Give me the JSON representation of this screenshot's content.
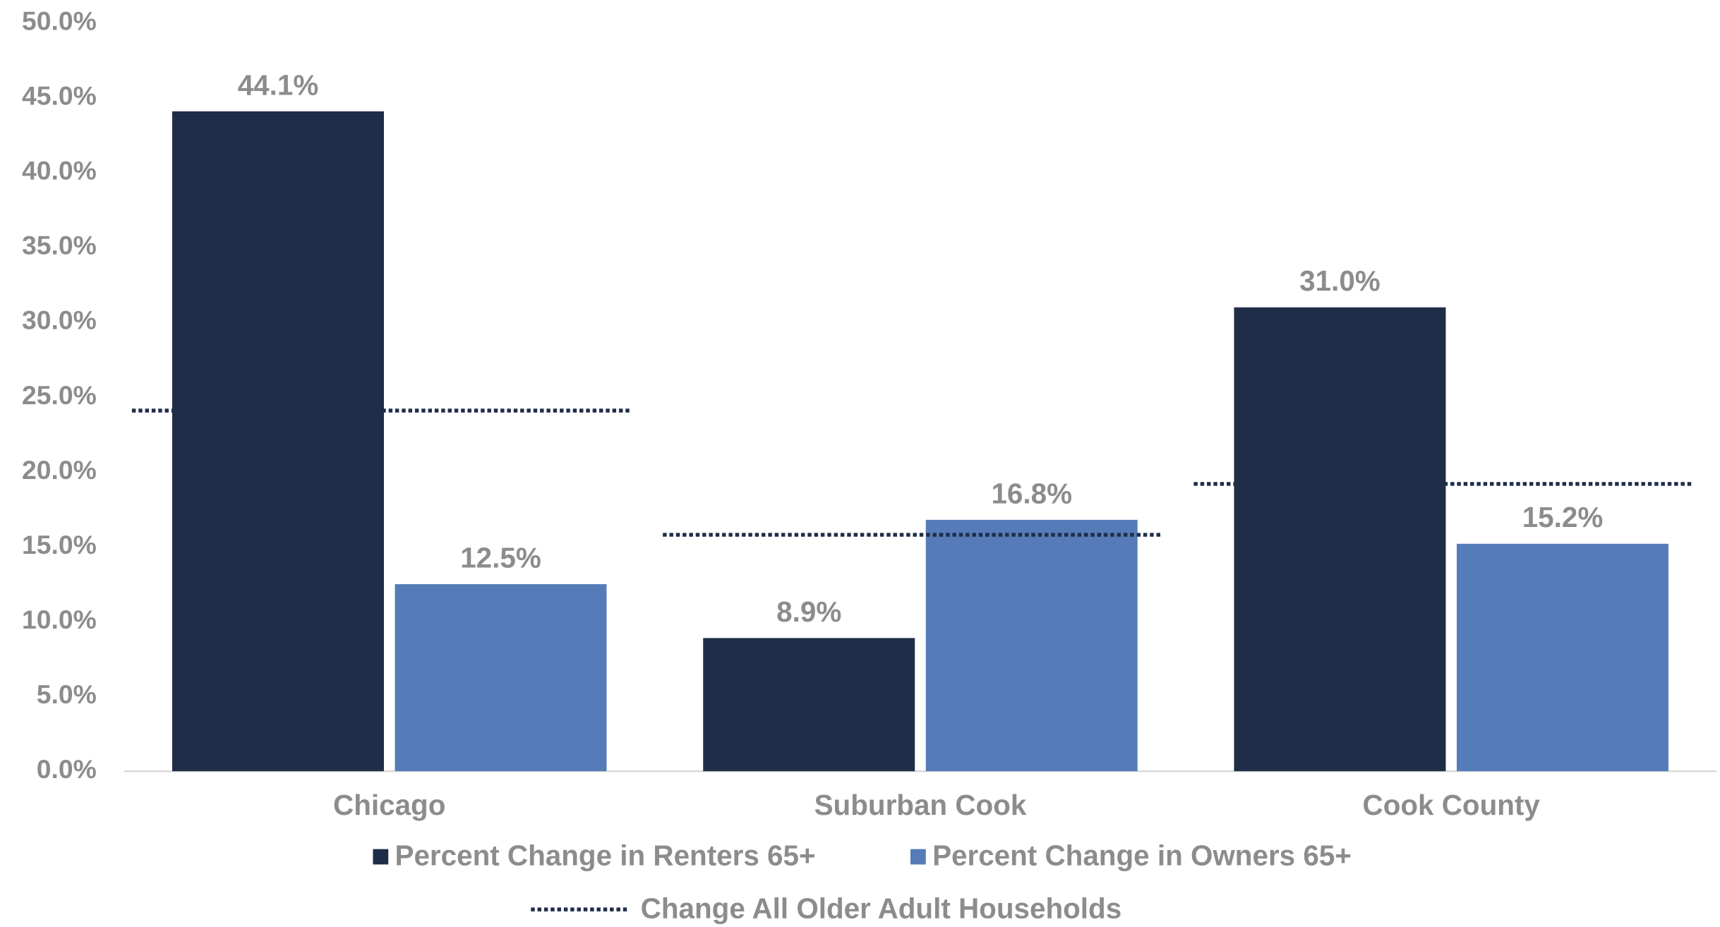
{
  "chart_data": {
    "type": "bar",
    "categories": [
      "Chicago",
      "Suburban Cook",
      "Cook County"
    ],
    "series": [
      {
        "name": "Percent Change in Renters 65+",
        "color": "#1f2d48",
        "values": [
          44.1,
          8.9,
          31.0
        ],
        "value_labels": [
          "44.1%",
          "8.9%",
          "31.0%"
        ]
      },
      {
        "name": "Percent Change in Owners 65+",
        "color": "#557cb8",
        "values": [
          12.5,
          16.8,
          15.2
        ],
        "value_labels": [
          "12.5%",
          "16.8%",
          "15.2%"
        ]
      },
      {
        "name": "Change All Older Adult Households",
        "type": "line",
        "style": "dotted",
        "color": "#1f2d48",
        "values": [
          24.1,
          15.8,
          19.2
        ]
      }
    ],
    "ylim": [
      0,
      50
    ],
    "yticks": [
      {
        "value": 0,
        "label": "0.0%"
      },
      {
        "value": 5,
        "label": "5.0%"
      },
      {
        "value": 10,
        "label": "10.0%"
      },
      {
        "value": 15,
        "label": "15.0%"
      },
      {
        "value": 20,
        "label": "20.0%"
      },
      {
        "value": 25,
        "label": "25.0%"
      },
      {
        "value": 30,
        "label": "30.0%"
      },
      {
        "value": 35,
        "label": "35.0%"
      },
      {
        "value": 40,
        "label": "40.0%"
      },
      {
        "value": 45,
        "label": "45.0%"
      },
      {
        "value": 50,
        "label": "50.0%"
      }
    ],
    "grid": false
  }
}
